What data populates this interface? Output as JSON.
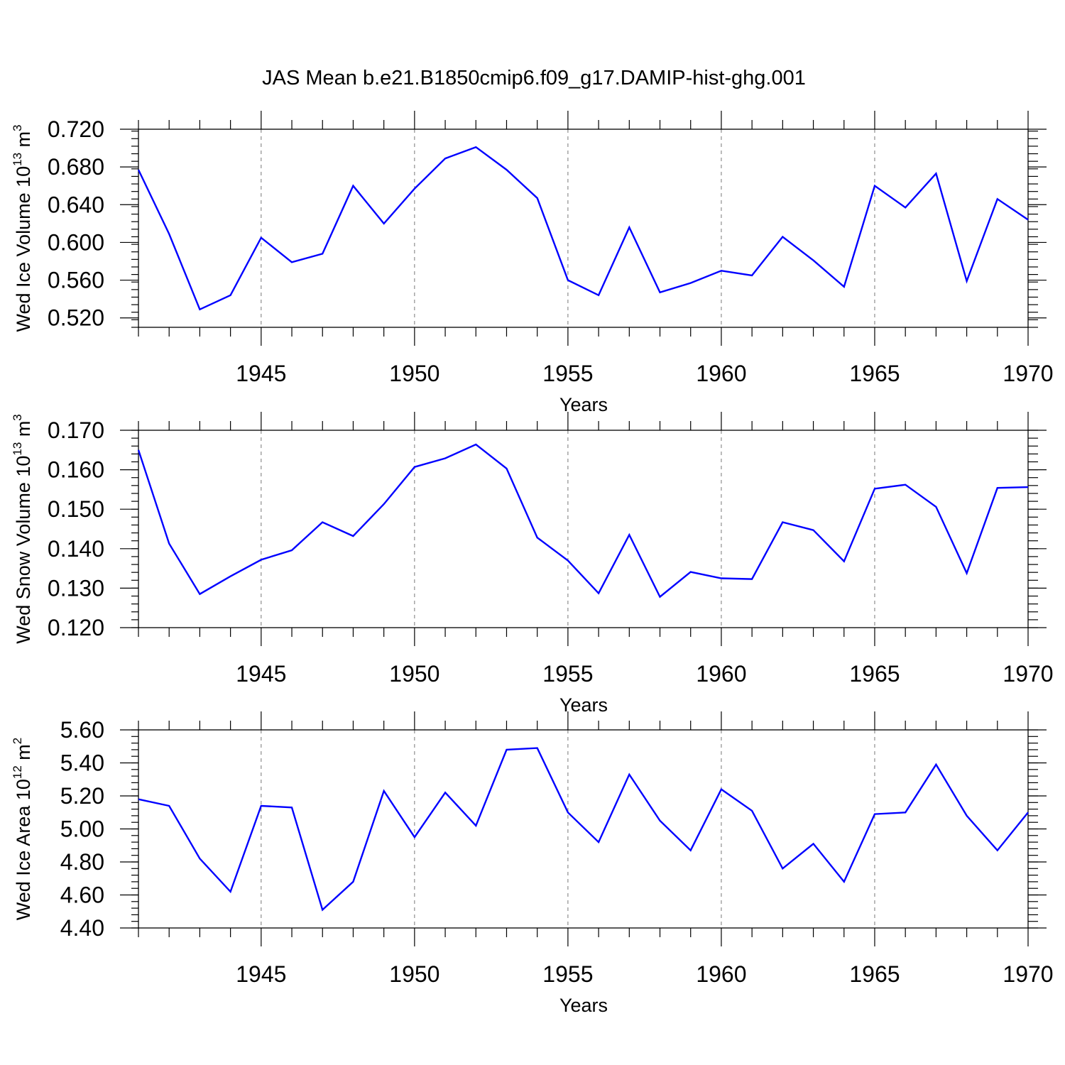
{
  "title": "JAS Mean b.e21.B1850cmip6.f09_g17.DAMIP-hist-ghg.001",
  "colors": {
    "series": "#0000ff",
    "axis": "#000000",
    "grid": "#777777"
  },
  "chart_data": [
    {
      "type": "line",
      "name": "ice-volume",
      "ylabel": {
        "text": "Wed Ice Volume 10",
        "exp": "13",
        "unit": " m",
        "unit_exp": "3"
      },
      "xlabel": "Years",
      "xlim": [
        1941,
        1970
      ],
      "ylim": [
        0.51,
        0.72
      ],
      "yticks": [
        0.52,
        0.56,
        0.6,
        0.64,
        0.68,
        0.72
      ],
      "ytick_labels": [
        "0.520",
        "0.560",
        "0.600",
        "0.640",
        "0.680",
        "0.720"
      ],
      "xticks": [
        1945,
        1950,
        1955,
        1960,
        1965,
        1970
      ],
      "xtick_labels": [
        "1945",
        "1950",
        "1955",
        "1960",
        "1965",
        "1970"
      ],
      "x": [
        1941,
        1942,
        1943,
        1944,
        1945,
        1946,
        1947,
        1948,
        1949,
        1950,
        1951,
        1952,
        1953,
        1954,
        1955,
        1956,
        1957,
        1958,
        1959,
        1960,
        1961,
        1962,
        1963,
        1964,
        1965,
        1966,
        1967,
        1968,
        1969,
        1970
      ],
      "values": [
        0.677,
        0.609,
        0.529,
        0.544,
        0.605,
        0.579,
        0.588,
        0.66,
        0.62,
        0.657,
        0.689,
        0.701,
        0.677,
        0.647,
        0.56,
        0.544,
        0.616,
        0.547,
        0.557,
        0.57,
        0.565,
        0.606,
        0.581,
        0.553,
        0.66,
        0.637,
        0.673,
        0.559,
        0.646,
        0.624
      ]
    },
    {
      "type": "line",
      "name": "snow-volume",
      "ylabel": {
        "text": "Wed Snow Volume 10",
        "exp": "13",
        "unit": " m",
        "unit_exp": "3"
      },
      "xlabel": "Years",
      "xlim": [
        1941,
        1970
      ],
      "ylim": [
        0.12,
        0.17
      ],
      "yticks": [
        0.12,
        0.13,
        0.14,
        0.15,
        0.16,
        0.17
      ],
      "ytick_labels": [
        "0.120",
        "0.130",
        "0.140",
        "0.150",
        "0.160",
        "0.170"
      ],
      "xticks": [
        1945,
        1950,
        1955,
        1960,
        1965,
        1970
      ],
      "xtick_labels": [
        "1945",
        "1950",
        "1955",
        "1960",
        "1965",
        "1970"
      ],
      "x": [
        1941,
        1942,
        1943,
        1944,
        1945,
        1946,
        1947,
        1948,
        1949,
        1950,
        1951,
        1952,
        1953,
        1954,
        1955,
        1956,
        1957,
        1958,
        1959,
        1960,
        1961,
        1962,
        1963,
        1964,
        1965,
        1966,
        1967,
        1968,
        1969,
        1970
      ],
      "values": [
        0.165,
        0.1413,
        0.1285,
        0.133,
        0.1372,
        0.1396,
        0.1467,
        0.1432,
        0.1513,
        0.1607,
        0.1629,
        0.1664,
        0.1603,
        0.1428,
        0.137,
        0.1287,
        0.1435,
        0.1278,
        0.1341,
        0.1325,
        0.1323,
        0.1467,
        0.1447,
        0.1368,
        0.1552,
        0.1562,
        0.1506,
        0.1338,
        0.1554,
        0.1556
      ]
    },
    {
      "type": "line",
      "name": "ice-area",
      "ylabel": {
        "text": "Wed Ice Area 10",
        "exp": "12",
        "unit": " m",
        "unit_exp": "2"
      },
      "xlabel": "Years",
      "xlim": [
        1941,
        1970
      ],
      "ylim": [
        4.4,
        5.6
      ],
      "yticks": [
        4.4,
        4.6,
        4.8,
        5.0,
        5.2,
        5.4,
        5.6
      ],
      "ytick_labels": [
        "4.40",
        "4.60",
        "4.80",
        "5.00",
        "5.20",
        "5.40",
        "5.60"
      ],
      "xticks": [
        1945,
        1950,
        1955,
        1960,
        1965,
        1970
      ],
      "xtick_labels": [
        "1945",
        "1950",
        "1955",
        "1960",
        "1965",
        "1970"
      ],
      "x": [
        1941,
        1942,
        1943,
        1944,
        1945,
        1946,
        1947,
        1948,
        1949,
        1950,
        1951,
        1952,
        1953,
        1954,
        1955,
        1956,
        1957,
        1958,
        1959,
        1960,
        1961,
        1962,
        1963,
        1964,
        1965,
        1966,
        1967,
        1968,
        1969,
        1970
      ],
      "values": [
        5.18,
        5.14,
        4.82,
        4.62,
        5.14,
        5.13,
        4.51,
        4.68,
        5.23,
        4.95,
        5.22,
        5.02,
        5.48,
        5.49,
        5.1,
        4.92,
        5.33,
        5.05,
        4.87,
        5.24,
        5.11,
        4.76,
        4.91,
        4.68,
        5.09,
        5.1,
        5.39,
        5.08,
        4.87,
        5.1
      ]
    }
  ]
}
